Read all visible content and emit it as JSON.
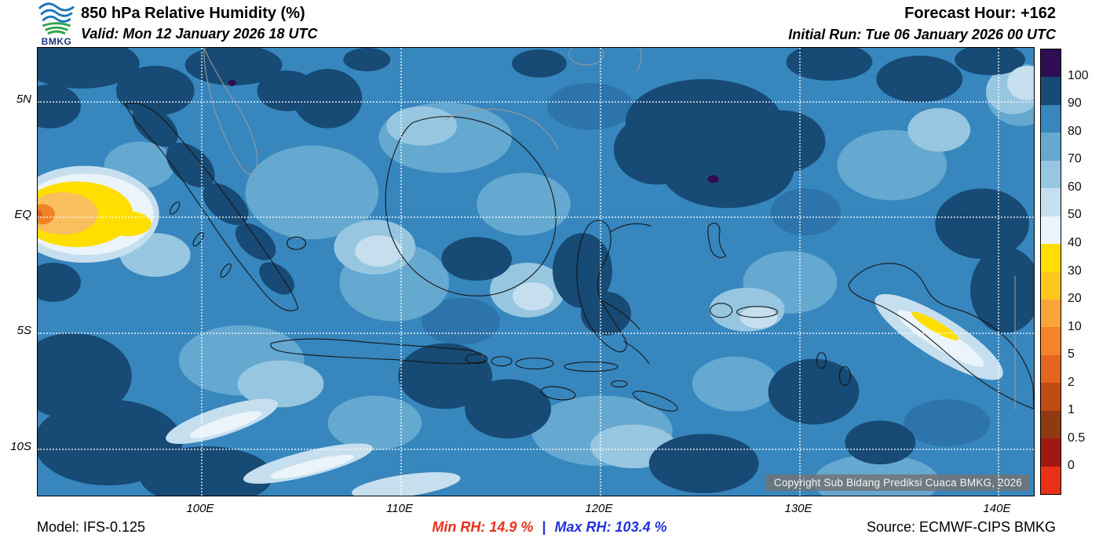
{
  "header": {
    "logo_text": "BMKG",
    "title": "850 hPa Relative Humidity (%)",
    "valid": "Valid: Mon 12 January 2026 18 UTC",
    "forecast_hour": "Forecast Hour: +162",
    "initial_run": "Initial Run: Tue 06 January 2026 00 UTC"
  },
  "map": {
    "lat_labels": [
      "5N",
      "EQ",
      "5S",
      "10S"
    ],
    "lon_labels": [
      "100E",
      "110E",
      "120E",
      "130E",
      "140E"
    ],
    "copyright": "Copyright Sub Bidang Prediksi Cuaca BMKG, 2026"
  },
  "colorbar": {
    "ticks": [
      "100",
      "90",
      "80",
      "70",
      "60",
      "50",
      "40",
      "30",
      "20",
      "10",
      "5",
      "2",
      "1",
      "0.5",
      "0"
    ],
    "colors": [
      "#2E0D52",
      "#174A74",
      "#3786BE",
      "#65A8D0",
      "#97C6E0",
      "#C6DFEF",
      "#EBF4FA",
      "#FFDE00",
      "#FFC61E",
      "#FAA53C",
      "#F4832A",
      "#E4661E",
      "#BF4B12",
      "#8F3A10",
      "#9E1A10",
      "#E83118"
    ]
  },
  "footer": {
    "model": "Model: IFS-0.125",
    "min_rh_label": "Min RH:",
    "min_rh_value": "14.9 %",
    "separator": "|",
    "max_rh_label": "Max RH:",
    "max_rh_value": "103.4 %",
    "source": "Source: ECMWF-CIPS BMKG"
  },
  "colors": {
    "min_rh_text": "#e8301c",
    "max_rh_text": "#2233dd",
    "map_base": "#3786BE",
    "high_humidity": "#174A74",
    "low_humidity_yellow": "#FFDE00"
  }
}
